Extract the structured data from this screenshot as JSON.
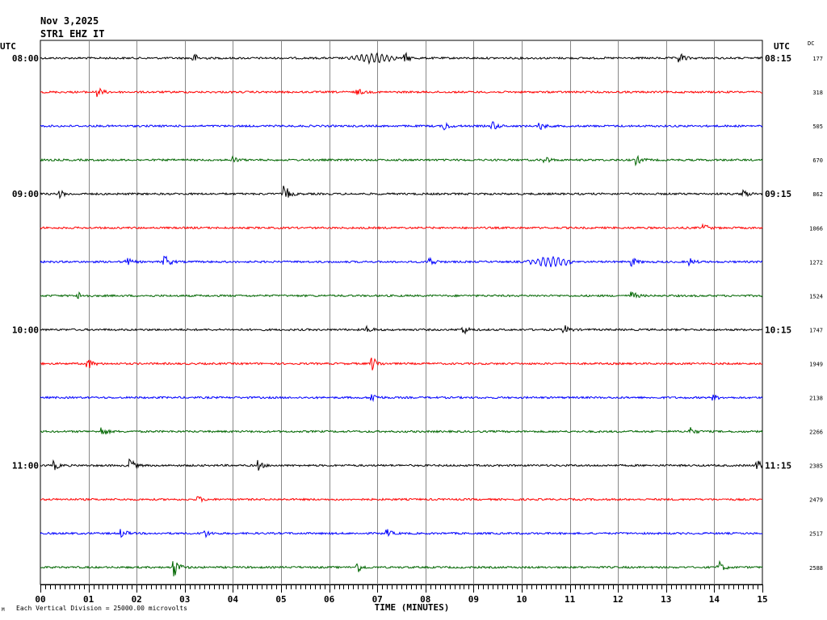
{
  "header": {
    "date": "Nov 3,2025",
    "station": "STR1 EHZ IT",
    "left_axis_label": "UTC",
    "right_axis_label": "UTC",
    "dc_label": "DC"
  },
  "footer": {
    "scale_note": "Each Vertical Division = 25000.00 microvolts",
    "corner_mark": "M"
  },
  "chart_data": {
    "type": "line",
    "title": "",
    "xlabel": "TIME (MINUTES)",
    "ylabel": "",
    "xlim": [
      0,
      15
    ],
    "x_tick_labels": [
      "00",
      "01",
      "02",
      "03",
      "04",
      "05",
      "06",
      "07",
      "08",
      "09",
      "10",
      "11",
      "12",
      "13",
      "14",
      "15"
    ],
    "trace_colors": [
      "#000000",
      "#ff0000",
      "#0000ff",
      "#006600"
    ],
    "grid": true,
    "traces": [
      {
        "start_label": "08:00",
        "end_label": "08:15",
        "dc": "177"
      },
      {
        "start_label": "",
        "end_label": "",
        "dc": "318"
      },
      {
        "start_label": "",
        "end_label": "",
        "dc": "505"
      },
      {
        "start_label": "",
        "end_label": "",
        "dc": "670"
      },
      {
        "start_label": "09:00",
        "end_label": "09:15",
        "dc": "862"
      },
      {
        "start_label": "",
        "end_label": "",
        "dc": "1066"
      },
      {
        "start_label": "",
        "end_label": "",
        "dc": "1272"
      },
      {
        "start_label": "",
        "end_label": "",
        "dc": "1524"
      },
      {
        "start_label": "10:00",
        "end_label": "10:15",
        "dc": "1747"
      },
      {
        "start_label": "",
        "end_label": "",
        "dc": "1949"
      },
      {
        "start_label": "",
        "end_label": "",
        "dc": "2138"
      },
      {
        "start_label": "",
        "end_label": "",
        "dc": "2266"
      },
      {
        "start_label": "11:00",
        "end_label": "11:15",
        "dc": "2385"
      },
      {
        "start_label": "",
        "end_label": "",
        "dc": "2479"
      },
      {
        "start_label": "",
        "end_label": "",
        "dc": "2517"
      },
      {
        "start_label": "",
        "end_label": "",
        "dc": "2588"
      }
    ],
    "events": [
      {
        "trace": 0,
        "minute": 3.2,
        "amplitude": 5,
        "kind": "burst"
      },
      {
        "trace": 0,
        "minute": 6.9,
        "amplitude": 7,
        "kind": "wave"
      },
      {
        "trace": 0,
        "minute": 7.6,
        "amplitude": 5,
        "kind": "burst"
      },
      {
        "trace": 0,
        "minute": 13.3,
        "amplitude": 6,
        "kind": "burst"
      },
      {
        "trace": 1,
        "minute": 1.2,
        "amplitude": 6,
        "kind": "burst"
      },
      {
        "trace": 1,
        "minute": 6.6,
        "amplitude": 4,
        "kind": "burst"
      },
      {
        "trace": 2,
        "minute": 8.4,
        "amplitude": 5,
        "kind": "burst"
      },
      {
        "trace": 2,
        "minute": 9.4,
        "amplitude": 6,
        "kind": "burst"
      },
      {
        "trace": 2,
        "minute": 10.4,
        "amplitude": 4,
        "kind": "burst"
      },
      {
        "trace": 3,
        "minute": 4.0,
        "amplitude": 4,
        "kind": "burst"
      },
      {
        "trace": 3,
        "minute": 10.5,
        "amplitude": 4,
        "kind": "burst"
      },
      {
        "trace": 3,
        "minute": 12.4,
        "amplitude": 5,
        "kind": "burst"
      },
      {
        "trace": 4,
        "minute": 0.4,
        "amplitude": 5,
        "kind": "burst"
      },
      {
        "trace": 4,
        "minute": 5.1,
        "amplitude": 9,
        "kind": "burst"
      },
      {
        "trace": 4,
        "minute": 14.6,
        "amplitude": 6,
        "kind": "burst"
      },
      {
        "trace": 5,
        "minute": 13.8,
        "amplitude": 4,
        "kind": "burst"
      },
      {
        "trace": 6,
        "minute": 1.8,
        "amplitude": 5,
        "kind": "burst"
      },
      {
        "trace": 6,
        "minute": 2.6,
        "amplitude": 8,
        "kind": "burst"
      },
      {
        "trace": 6,
        "minute": 8.1,
        "amplitude": 6,
        "kind": "burst"
      },
      {
        "trace": 6,
        "minute": 10.6,
        "amplitude": 7,
        "kind": "wave"
      },
      {
        "trace": 6,
        "minute": 12.3,
        "amplitude": 5,
        "kind": "burst"
      },
      {
        "trace": 6,
        "minute": 13.5,
        "amplitude": 4,
        "kind": "burst"
      },
      {
        "trace": 7,
        "minute": 0.8,
        "amplitude": 4,
        "kind": "burst"
      },
      {
        "trace": 7,
        "minute": 12.3,
        "amplitude": 5,
        "kind": "burst"
      },
      {
        "trace": 8,
        "minute": 6.8,
        "amplitude": 4,
        "kind": "burst"
      },
      {
        "trace": 8,
        "minute": 8.8,
        "amplitude": 5,
        "kind": "burst"
      },
      {
        "trace": 8,
        "minute": 10.9,
        "amplitude": 5,
        "kind": "burst"
      },
      {
        "trace": 9,
        "minute": 1.0,
        "amplitude": 6,
        "kind": "burst"
      },
      {
        "trace": 9,
        "minute": 6.9,
        "amplitude": 9,
        "kind": "burst"
      },
      {
        "trace": 10,
        "minute": 6.9,
        "amplitude": 6,
        "kind": "burst"
      },
      {
        "trace": 10,
        "minute": 14.0,
        "amplitude": 3,
        "kind": "burst"
      },
      {
        "trace": 11,
        "minute": 1.3,
        "amplitude": 5,
        "kind": "burst"
      },
      {
        "trace": 11,
        "minute": 13.5,
        "amplitude": 5,
        "kind": "burst"
      },
      {
        "trace": 12,
        "minute": 0.3,
        "amplitude": 5,
        "kind": "burst"
      },
      {
        "trace": 12,
        "minute": 1.85,
        "amplitude": 11,
        "kind": "burst"
      },
      {
        "trace": 12,
        "minute": 4.5,
        "amplitude": 8,
        "kind": "burst"
      },
      {
        "trace": 12,
        "minute": 14.9,
        "amplitude": 8,
        "kind": "burst"
      },
      {
        "trace": 13,
        "minute": 3.3,
        "amplitude": 3,
        "kind": "burst"
      },
      {
        "trace": 14,
        "minute": 1.7,
        "amplitude": 5,
        "kind": "burst"
      },
      {
        "trace": 14,
        "minute": 3.4,
        "amplitude": 6,
        "kind": "burst"
      },
      {
        "trace": 14,
        "minute": 7.2,
        "amplitude": 5,
        "kind": "burst"
      },
      {
        "trace": 15,
        "minute": 2.8,
        "amplitude": 11,
        "kind": "burst"
      },
      {
        "trace": 15,
        "minute": 6.6,
        "amplitude": 6,
        "kind": "burst"
      },
      {
        "trace": 15,
        "minute": 14.1,
        "amplitude": 8,
        "kind": "burst"
      }
    ]
  }
}
